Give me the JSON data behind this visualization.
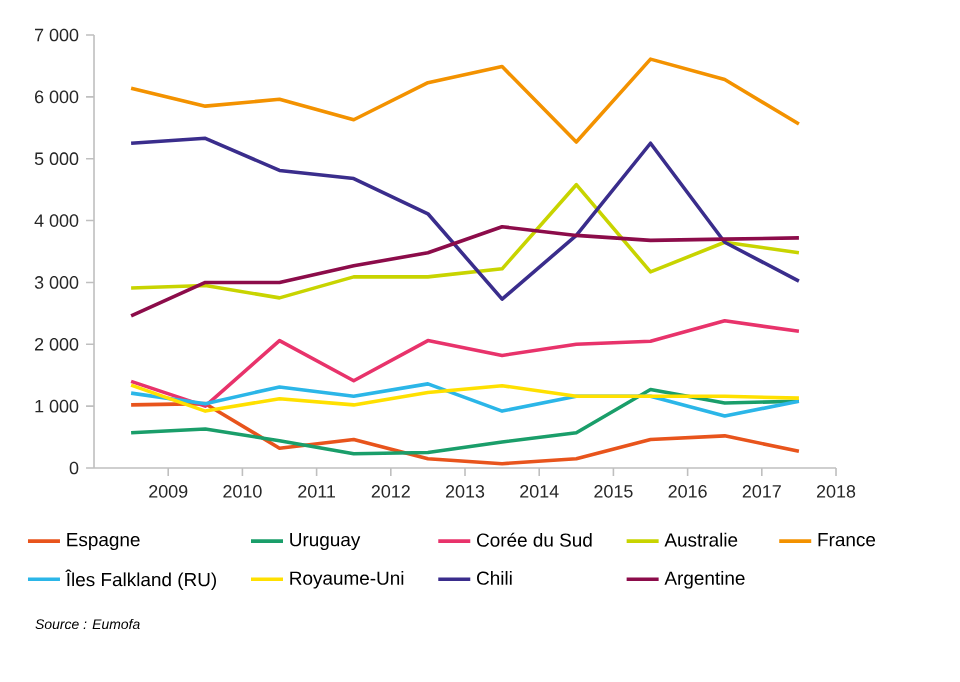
{
  "chart_data": {
    "type": "line",
    "x": [
      2008.5,
      2009.5,
      2010.5,
      2011.5,
      2012.5,
      2013.5,
      2014.5,
      2015.5,
      2016.5,
      2017.5
    ],
    "xlim": [
      2008,
      2018
    ],
    "xticks": [
      2009,
      2010,
      2011,
      2012,
      2013,
      2014,
      2015,
      2016,
      2017,
      2018
    ],
    "ylim": [
      0,
      7000
    ],
    "yticks": [
      {
        "value": 0,
        "label": "0"
      },
      {
        "value": 1000,
        "label": "1 000"
      },
      {
        "value": 2000,
        "label": "2 000"
      },
      {
        "value": 3000,
        "label": "3 000"
      },
      {
        "value": 4000,
        "label": "4 000"
      },
      {
        "value": 5000,
        "label": "5 000"
      },
      {
        "value": 6000,
        "label": "6 000"
      },
      {
        "value": 7000,
        "label": "7 000"
      }
    ],
    "grid": false,
    "legend": "bottom",
    "marker": "none",
    "line_style": "solid",
    "series": [
      {
        "name": "Espagne",
        "color": "#e8541c",
        "values": [
          1020,
          1040,
          320,
          460,
          150,
          70,
          150,
          460,
          520,
          270
        ]
      },
      {
        "name": "Uruguay",
        "color": "#1a9e6a",
        "values": [
          570,
          630,
          440,
          230,
          250,
          420,
          570,
          1270,
          1050,
          1080
        ]
      },
      {
        "name": "Corée du Sud",
        "color": "#e8336b",
        "values": [
          1400,
          1000,
          2060,
          1410,
          2060,
          1820,
          2000,
          2050,
          2380,
          2210
        ]
      },
      {
        "name": "Australie",
        "color": "#c8d400",
        "values": [
          2910,
          2950,
          2750,
          3090,
          3090,
          3220,
          4580,
          3170,
          3650,
          3480
        ]
      },
      {
        "name": "France",
        "color": "#f39200",
        "values": [
          6140,
          5850,
          5960,
          5630,
          6230,
          6490,
          5270,
          6610,
          6280,
          5560
        ]
      },
      {
        "name": "Îles Falkland (RU)",
        "color": "#2bb6e8",
        "values": [
          1210,
          1040,
          1310,
          1160,
          1360,
          920,
          1160,
          1160,
          840,
          1080
        ]
      },
      {
        "name": "Royaume-Uni",
        "color": "#ffe000",
        "values": [
          1340,
          920,
          1120,
          1020,
          1220,
          1330,
          1160,
          1160,
          1160,
          1130
        ]
      },
      {
        "name": "Chili",
        "color": "#3a2d8c",
        "values": [
          5250,
          5330,
          4810,
          4680,
          4110,
          2730,
          3760,
          5250,
          3650,
          3020
        ]
      },
      {
        "name": "Argentine",
        "color": "#8c0c4a",
        "values": [
          2460,
          3000,
          3000,
          3270,
          3480,
          3900,
          3760,
          3680,
          3700,
          3720
        ]
      }
    ],
    "annotations": [
      "Source : Eumofa"
    ]
  }
}
